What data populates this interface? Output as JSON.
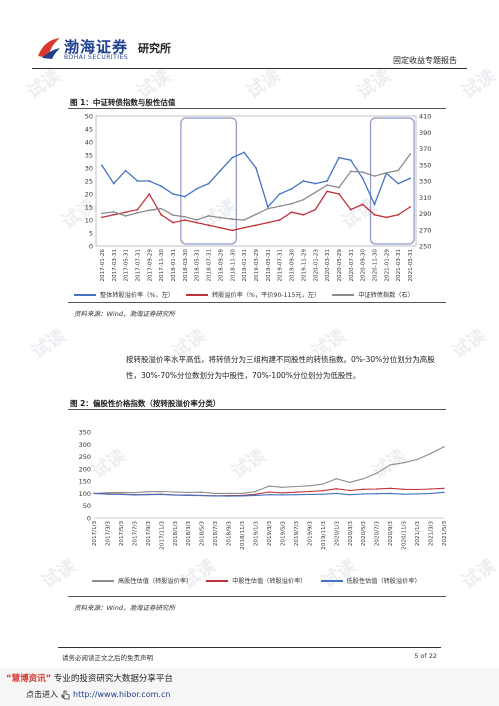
{
  "header": {
    "logo_cn": "渤海证券",
    "logo_en": "BOHAI SECURITIES",
    "institute": "研究所",
    "report_type": "固定收益专题报告"
  },
  "fig1": {
    "title": "图 1：中证转债指数与股性估值",
    "source": "资料来源：Wind，渤海证券研究所",
    "legend": [
      "整体转股溢价率（%，左）",
      "转股溢价率（%，平价90-115元，左）",
      "中证转债指数（右）"
    ]
  },
  "paragraph": "按转股溢价率水平高低，将转债分为三组构建不同股性的转债指数。0%-30%分位划分为高股性，30%-70%分位数划分为中股性，70%-100%分位划分为低股性。",
  "fig2": {
    "title": "图 2：偏股性价格指数（按转股溢价率分类）",
    "source": "资料来源：Wind，渤海证券研究所",
    "legend": [
      "高股性估值（转股溢价率）",
      "中股性估值（转股溢价率）",
      "低股性估值（转股溢价率）"
    ]
  },
  "footer": {
    "disclaimer": "请务必阅读正文之后的免责声明",
    "page": "5 of 22",
    "banner_brand": "“慧博资讯”",
    "banner_text": "专业的投资研究大数据分享平台",
    "banner_click": "点击进入",
    "banner_url": "http://www.hibor.com.cn"
  },
  "chart_data": [
    {
      "type": "line",
      "title": "图 1：中证转债指数与股性估值",
      "x_labels": [
        "2017-01-26",
        "2017-03-31",
        "2017-05-31",
        "2017-07-31",
        "2017-09-29",
        "2017-11-30",
        "2018-01-31",
        "2018-03-30",
        "2018-05-31",
        "2018-07-31",
        "2018-09-28",
        "2018-11-30",
        "2019-01-31",
        "2019-03-29",
        "2019-05-31",
        "2019-07-31",
        "2019-09-30",
        "2019-11-29",
        "2020-01-23",
        "2020-03-31",
        "2020-05-29",
        "2020-07-31",
        "2020-09-30",
        "2020-11-30",
        "2021-01-29",
        "2021-03-31",
        "2021-05-31"
      ],
      "y_left": {
        "min": 0,
        "max": 50,
        "ticks": [
          0,
          5,
          10,
          15,
          20,
          25,
          30,
          35,
          40,
          45,
          50
        ]
      },
      "y_right": {
        "min": 250,
        "max": 410,
        "ticks": [
          250,
          270,
          290,
          310,
          330,
          350,
          370,
          390,
          410
        ]
      },
      "series": [
        {
          "name": "整体转股溢价率（%，左）",
          "axis": "left",
          "color": "#4472c4",
          "values": [
            31,
            24,
            29,
            25,
            25,
            23,
            20,
            19,
            22,
            24,
            29,
            34,
            36,
            30,
            15,
            20,
            22,
            25,
            24,
            25,
            34,
            33,
            26,
            16,
            28,
            24,
            26
          ]
        },
        {
          "name": "转股溢价率（%，平价90-115元，左）",
          "axis": "left",
          "color": "#c0323a",
          "values": [
            11,
            12,
            13,
            14,
            20,
            12,
            9,
            10,
            9,
            8,
            7,
            6,
            7,
            8,
            9,
            10,
            13,
            12,
            14,
            21,
            20,
            14,
            16,
            12,
            11,
            12,
            15
          ]
        },
        {
          "name": "中证转债指数（右）",
          "axis": "right",
          "color": "#8c8c8c",
          "values": [
            290,
            292,
            287,
            291,
            294,
            296,
            288,
            286,
            282,
            287,
            285,
            283,
            282,
            289,
            296,
            299,
            302,
            307,
            316,
            325,
            322,
            342,
            341,
            336,
            340,
            343,
            363
          ]
        }
      ],
      "highlight_ranges": [
        [
          "2018-03-30",
          "2018-11-30"
        ],
        [
          "2020-11-30",
          "2021-05-31"
        ]
      ]
    },
    {
      "type": "line",
      "title": "图 2：偏股性价格指数（按转股溢价率分类）",
      "x_labels": [
        "2017/1/3",
        "2017/3/3",
        "2017/5/3",
        "2017/7/3",
        "2017/9/3",
        "2017/11/3",
        "2018/1/3",
        "2018/3/3",
        "2018/5/3",
        "2018/7/3",
        "2018/9/3",
        "2018/11/3",
        "2019/1/3",
        "2019/3/3",
        "2019/5/3",
        "2019/7/3",
        "2019/9/3",
        "2019/11/3",
        "2020/1/3",
        "2020/3/3",
        "2020/5/3",
        "2020/7/3",
        "2020/9/3",
        "2020/11/3",
        "2021/1/3",
        "2021/3/3",
        "2021/5/3"
      ],
      "y": {
        "min": 0,
        "max": 350,
        "ticks": [
          0,
          50,
          100,
          150,
          200,
          250,
          300,
          350
        ]
      },
      "series": [
        {
          "name": "高股性估值（转股溢价率）",
          "color": "#8c8c8c",
          "values": [
            100,
            103,
            104,
            103,
            107,
            108,
            106,
            104,
            105,
            100,
            100,
            100,
            108,
            130,
            125,
            128,
            131,
            138,
            160,
            145,
            160,
            182,
            216,
            225,
            238,
            262,
            290
          ]
        },
        {
          "name": "中股性估值（转股溢价率）",
          "color": "#c0323a",
          "values": [
            100,
            98,
            97,
            95,
            96,
            97,
            94,
            93,
            92,
            90,
            91,
            92,
            97,
            106,
            102,
            105,
            108,
            111,
            119,
            112,
            117,
            118,
            121,
            117,
            116,
            118,
            121
          ]
        },
        {
          "name": "低股性估值（转股溢价率）",
          "color": "#4472c4",
          "values": [
            100,
            97,
            96,
            94,
            95,
            96,
            93,
            92,
            91,
            90,
            89,
            90,
            92,
            95,
            94,
            95,
            96,
            97,
            100,
            95,
            98,
            99,
            100,
            97,
            98,
            100,
            104
          ]
        }
      ]
    }
  ]
}
